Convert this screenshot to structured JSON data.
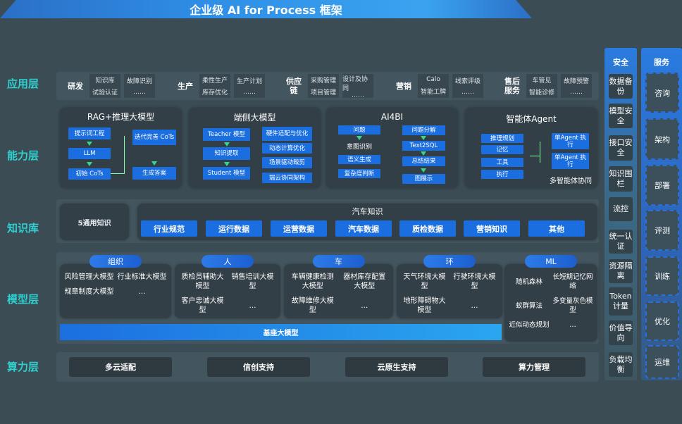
{
  "title": "企业级 AI for Process 框架",
  "layers": {
    "app": "应用层",
    "capability": "能力层",
    "knowledge": "知识库",
    "model": "模型层",
    "compute": "算力层"
  },
  "app_groups": [
    {
      "name": "研发",
      "cols": [
        [
          "知识库",
          "试验认证"
        ],
        [
          "故障识别",
          "……"
        ]
      ]
    },
    {
      "name": "生产",
      "cols": [
        [
          "柔性生产",
          "库存优化"
        ],
        [
          "生产计划",
          "……"
        ]
      ]
    },
    {
      "name": "供应链",
      "cols": [
        [
          "采购管理",
          "项目管理"
        ],
        [
          "设计及协同",
          "……"
        ]
      ]
    },
    {
      "name": "营销",
      "cols": [
        [
          "Calo",
          "智能工牌"
        ],
        [
          "线索评级",
          "……"
        ]
      ]
    },
    {
      "name": "售后服务",
      "cols": [
        [
          "车管见",
          "智能诊修"
        ],
        [
          "故障预警",
          "……"
        ]
      ]
    }
  ],
  "capability": {
    "rag": {
      "title": "RAG+推理大模型",
      "prompt": "提示词工程",
      "llm": "LLM",
      "init": "初始 CoTs",
      "iter": "迭代完善 CoTs",
      "answer": "生成答案"
    },
    "edge": {
      "title": "端侧大模型",
      "teacher": "Teacher 模型",
      "extract": "知识提取",
      "student": "Student 模型",
      "right": [
        "硬件适配与优化",
        "动态计算优化",
        "场景驱动裁剪",
        "端云协同架构"
      ]
    },
    "ai4bi": {
      "title": "AI4BI",
      "question": "问题",
      "intent": "意图识别",
      "semantic": "语义生成",
      "complexity": "复杂度判断",
      "decompose": "问题分解",
      "text2sql": "Text2SQL",
      "summary": "总结结果",
      "chart": "图展示"
    },
    "agent": {
      "title": "智能体Agent",
      "left": [
        "推理规划",
        "记忆",
        "工具",
        "执行"
      ],
      "single1": "单Agent 执行",
      "single2": "单Agent 执行",
      "multi": "多智能体协同"
    }
  },
  "knowledge": {
    "general": "5通用知识",
    "auto_title": "汽车知识",
    "items": [
      "行业规范",
      "运行数据",
      "运营数据",
      "汽车数据",
      "质检数据",
      "营销知识",
      "其他"
    ]
  },
  "model": {
    "groups": [
      {
        "name": "组织",
        "items": [
          "风险管理大模型",
          "行业标准大模型",
          "规章制度大模型",
          "…"
        ]
      },
      {
        "name": "人",
        "items": [
          "质检员辅助大模型",
          "销售培训大模型",
          "客户忠诚大模型",
          "…"
        ]
      },
      {
        "name": "车",
        "items": [
          "车辆健康检测大模型",
          "器材库存配置大模型",
          "故障维修大模型",
          "…"
        ]
      },
      {
        "name": "环",
        "items": [
          "天气环境大模型",
          "行驶环境大模型",
          "地形障碍物大模型",
          "…"
        ]
      },
      {
        "name": "ML",
        "items": [
          "随机森林",
          "长短期记忆网络",
          "蚁群算法",
          "多变量灰色模型",
          "近似动态规划",
          "…"
        ]
      }
    ],
    "base": "基座大模型"
  },
  "compute": [
    "多云适配",
    "信创支持",
    "云原生支持",
    "算力管理"
  ],
  "security": {
    "title": "安全",
    "items": [
      "数据备份",
      "模型安全",
      "接口安全",
      "知识围栏",
      "流控",
      "统一认证",
      "资源隔离",
      "Token计量",
      "价值导向",
      "负载均衡"
    ]
  },
  "service": {
    "title": "服务",
    "items": [
      "咨询",
      "架构",
      "部署",
      "评测",
      "训练",
      "优化",
      "运维"
    ]
  },
  "colors": {
    "accent": "#1a6ee0",
    "label": "#2fd0cf",
    "arrow": "#35d88a"
  }
}
